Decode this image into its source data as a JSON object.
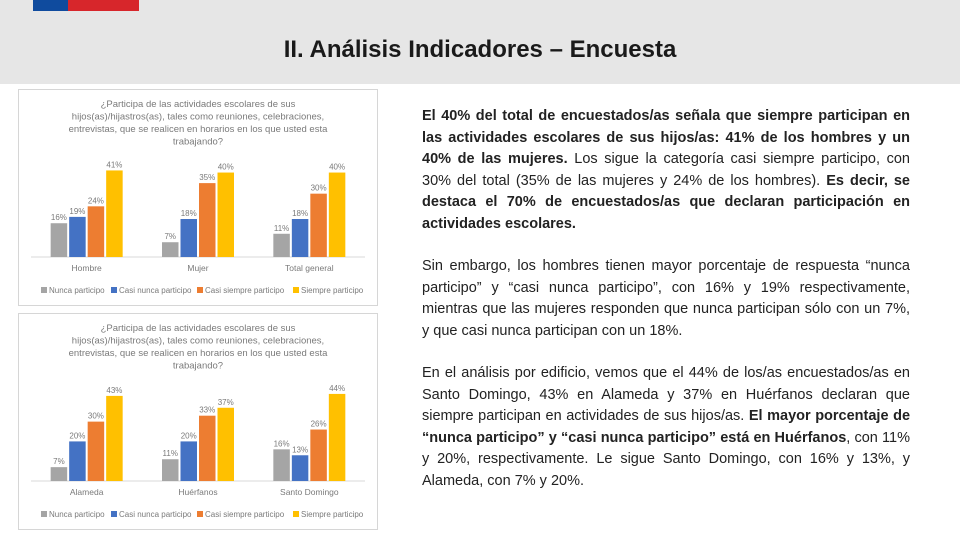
{
  "header": {
    "title": "II. Análisis Indicadores – Encuesta",
    "colors": {
      "flag_blue": "#0f4b9e",
      "flag_red": "#d7262b"
    }
  },
  "chart_data": [
    {
      "type": "bar",
      "title": "¿Participa de las actividades escolares de sus hijos(as)/hijastros(as), tales como reuniones, celebraciones, entrevistas, que se realicen en horarios en los que usted esta trabajando?",
      "title_lines": [
        "¿Participa de las actividades escolares de sus",
        "hijos(as)/hijastros(as), tales como reuniones, celebraciones,",
        "entrevistas, que se realicen en horarios en los que usted esta",
        "trabajando?"
      ],
      "categories": [
        "Hombre",
        "Mujer",
        "Total general"
      ],
      "series": [
        {
          "name": "Nunca participo",
          "color": "#a5a5a5",
          "values": [
            16,
            7,
            11
          ],
          "labels": [
            "16%",
            "7%",
            "11%"
          ]
        },
        {
          "name": "Casi nunca participo",
          "color": "#4472c4",
          "values": [
            19,
            18,
            18
          ],
          "labels": [
            "19%",
            "18%",
            "18%"
          ]
        },
        {
          "name": "Casi siempre participo",
          "color": "#ed7d31",
          "values": [
            24,
            35,
            30
          ],
          "labels": [
            "24%",
            "35%",
            "30%"
          ]
        },
        {
          "name": "Siempre participo",
          "color": "#ffc000",
          "values": [
            41,
            40,
            40
          ],
          "labels": [
            "41%",
            "40%",
            "40%"
          ]
        }
      ],
      "ylim": [
        0,
        45
      ],
      "legend": "bottom"
    },
    {
      "type": "bar",
      "title": "¿Participa de las actividades escolares de sus hijos(as)/hijastros(as), tales como reuniones, celebraciones, entrevistas, que se realicen en horarios en los que usted esta trabajando?",
      "title_lines": [
        "¿Participa de las actividades escolares de sus",
        "hijos(as)/hijastros(as), tales como reuniones, celebraciones,",
        "entrevistas, que se realicen en horarios en los que usted esta",
        "trabajando?"
      ],
      "categories": [
        "Alameda",
        "Huérfanos",
        "Santo Domingo"
      ],
      "series": [
        {
          "name": "Nunca participo",
          "color": "#a5a5a5",
          "values": [
            7,
            11,
            16
          ],
          "labels": [
            "7%",
            "11%",
            "16%"
          ]
        },
        {
          "name": "Casi nunca participo",
          "color": "#4472c4",
          "values": [
            20,
            20,
            13
          ],
          "labels": [
            "20%",
            "20%",
            "13%"
          ]
        },
        {
          "name": "Casi siempre participo",
          "color": "#ed7d31",
          "values": [
            30,
            33,
            26
          ],
          "labels": [
            "30%",
            "33%",
            "26%"
          ]
        },
        {
          "name": "Siempre participo",
          "color": "#ffc000",
          "values": [
            43,
            37,
            44
          ],
          "labels": [
            "43%",
            "37%",
            "44%"
          ]
        }
      ],
      "ylim": [
        0,
        48
      ],
      "legend": "bottom"
    }
  ],
  "text": {
    "p1": [
      {
        "t": "El 40% del total de encuestados/as señala que siempre participan en las actividades escolares de sus hijos/as: 41% de los hombres y un 40% de las mujeres.",
        "b": true
      },
      {
        "t": " Los sigue la categoría casi siempre participo, con 30% del total (35% de las mujeres y 24% de los hombres). ",
        "b": false
      },
      {
        "t": "Es decir, se destaca el 70% de encuestados/as que declaran participación en actividades escolares.",
        "b": true
      }
    ],
    "p2": [
      {
        "t": "Sin embargo, los hombres tienen mayor porcentaje de respuesta “nunca participo” y “casi nunca participo”, con 16% y 19% respectivamente, mientras que las mujeres responden que nunca participan sólo con un 7%, y que casi nunca participan con un 18%.",
        "b": false
      }
    ],
    "p3": [
      {
        "t": "En el análisis por edificio, vemos que el 44% de los/as encuestados/as en Santo Domingo, 43% en Alameda y 37% en Huérfanos declaran que siempre participan en actividades de sus hijos/as. ",
        "b": false
      },
      {
        "t": "El mayor porcentaje de “nunca participo” y “casi nunca participo” está en Huérfanos",
        "b": true
      },
      {
        "t": ", con 11% y 20%, respectivamente. Le sigue Santo Domingo, con 16% y 13%, y Alameda, con 7% y 20%.",
        "b": false
      }
    ]
  }
}
